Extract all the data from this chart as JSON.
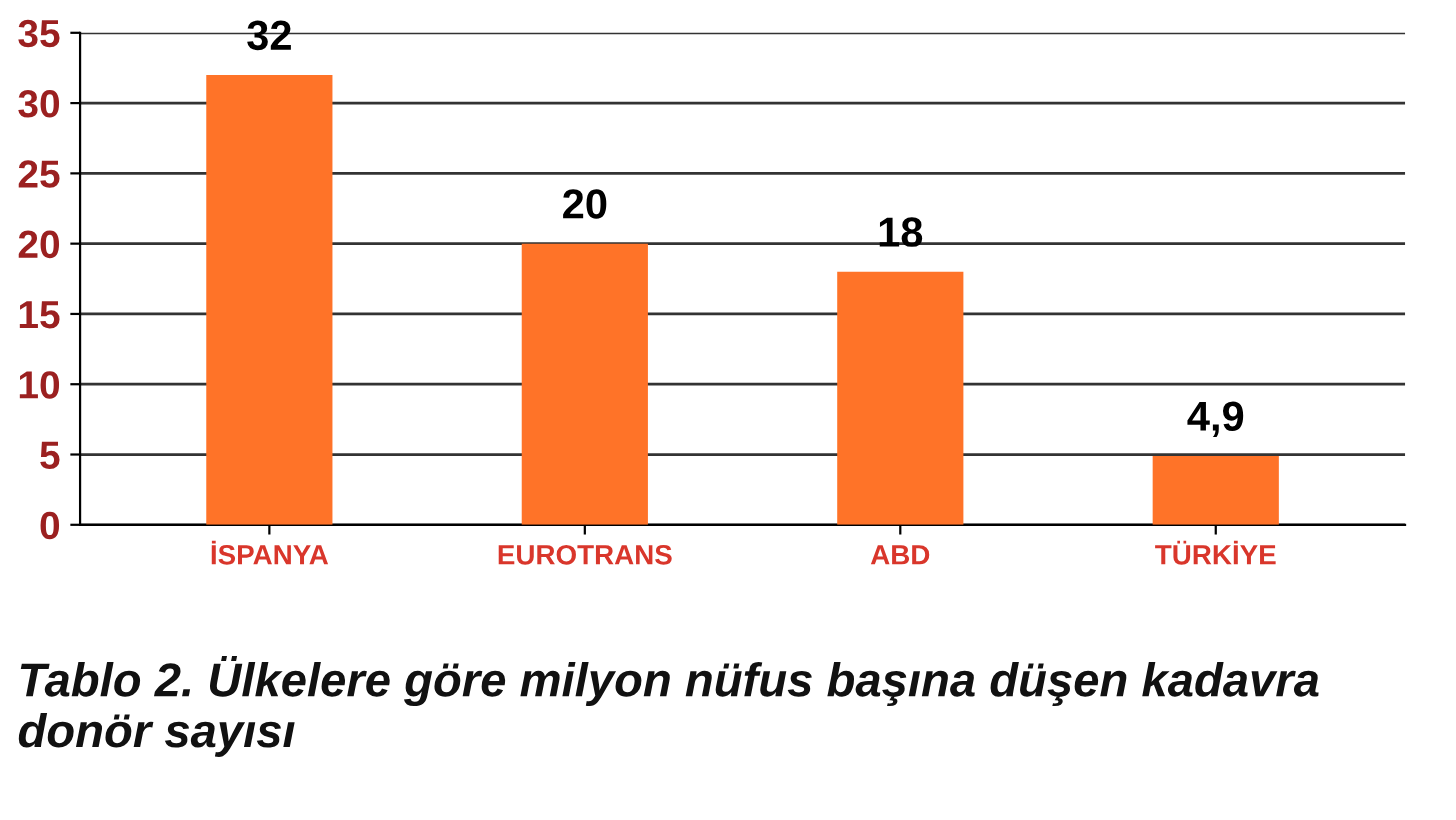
{
  "chart_data": {
    "type": "bar",
    "categories": [
      "İSPANYA",
      "EUROTRANS",
      "ABD",
      "TÜRKİYE"
    ],
    "values": [
      32,
      20,
      18,
      4.9
    ],
    "value_labels": [
      "32",
      "20",
      "18",
      "4,9"
    ],
    "color": "#ff7328",
    "ylim": [
      0,
      35
    ],
    "yticks": [
      0,
      5,
      10,
      15,
      20,
      25,
      30,
      35
    ],
    "grid": "y",
    "annotations": [
      "Tablo 2. Ülkelere göre milyon nüfus başına düşen kadavra donör sayısı"
    ]
  }
}
